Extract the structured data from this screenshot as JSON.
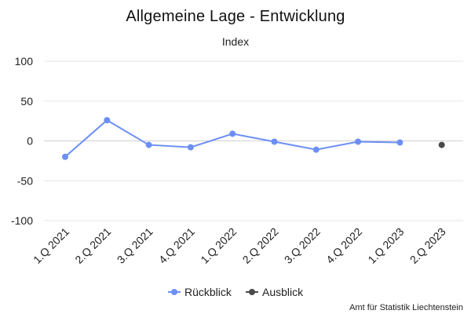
{
  "chart_data": {
    "type": "line",
    "title": "Allgemeine Lage - Entwicklung",
    "subtitle": "Index",
    "categories": [
      "1.Q 2021",
      "2.Q 2021",
      "3.Q 2021",
      "4.Q 2021",
      "1.Q 2022",
      "2.Q 2022",
      "3.Q 2022",
      "4.Q 2022",
      "1.Q 2023",
      "2.Q 2023"
    ],
    "ylim": [
      -100,
      100
    ],
    "yticks": [
      100,
      50,
      0,
      -50,
      -100
    ],
    "ytick_labels": [
      "100",
      "50",
      "0",
      "-50",
      "-100"
    ],
    "grid": true,
    "legend_position": "bottom-center",
    "series": [
      {
        "name": "Rückblick",
        "color": "#6c8ff6",
        "values": [
          -20,
          26,
          -5,
          -8,
          9,
          -1,
          -11,
          -1,
          -2,
          null
        ]
      },
      {
        "name": "Ausblick",
        "color": "#4a4a4a",
        "values": [
          null,
          null,
          null,
          null,
          null,
          null,
          null,
          null,
          null,
          -5
        ]
      }
    ],
    "credit": "Amt für Statistik Liechtenstein"
  }
}
